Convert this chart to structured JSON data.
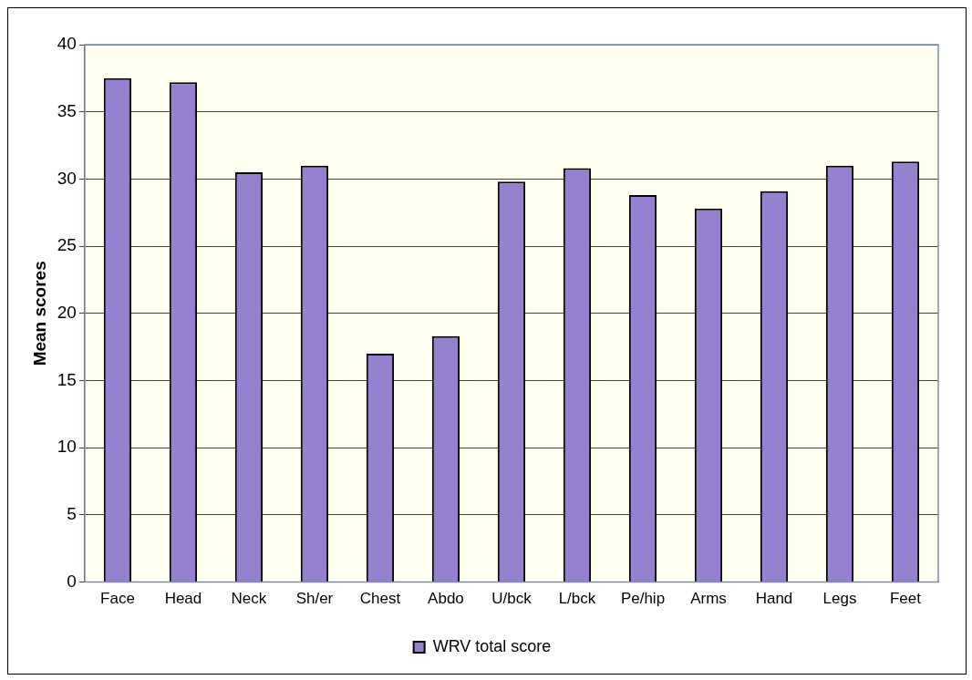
{
  "chart_data": {
    "type": "bar",
    "ylabel": "Mean scores",
    "categories": [
      "Face",
      "Head",
      "Neck",
      "Sh/er",
      "Chest",
      "Abdo",
      "U/bck",
      "L/bck",
      "Pe/hip",
      "Arms",
      "Hand",
      "Legs",
      "Feet"
    ],
    "series": [
      {
        "name": "WRV total score",
        "color": "#9680d0",
        "values": [
          37.5,
          37.2,
          30.5,
          31.0,
          17.0,
          18.3,
          29.8,
          30.8,
          28.8,
          27.8,
          29.1,
          31.0,
          31.3
        ]
      }
    ],
    "ylim": [
      0,
      40
    ],
    "yticks": [
      0,
      5,
      10,
      15,
      20,
      25,
      30,
      35,
      40
    ],
    "grid": "y",
    "legend": "bottom"
  }
}
